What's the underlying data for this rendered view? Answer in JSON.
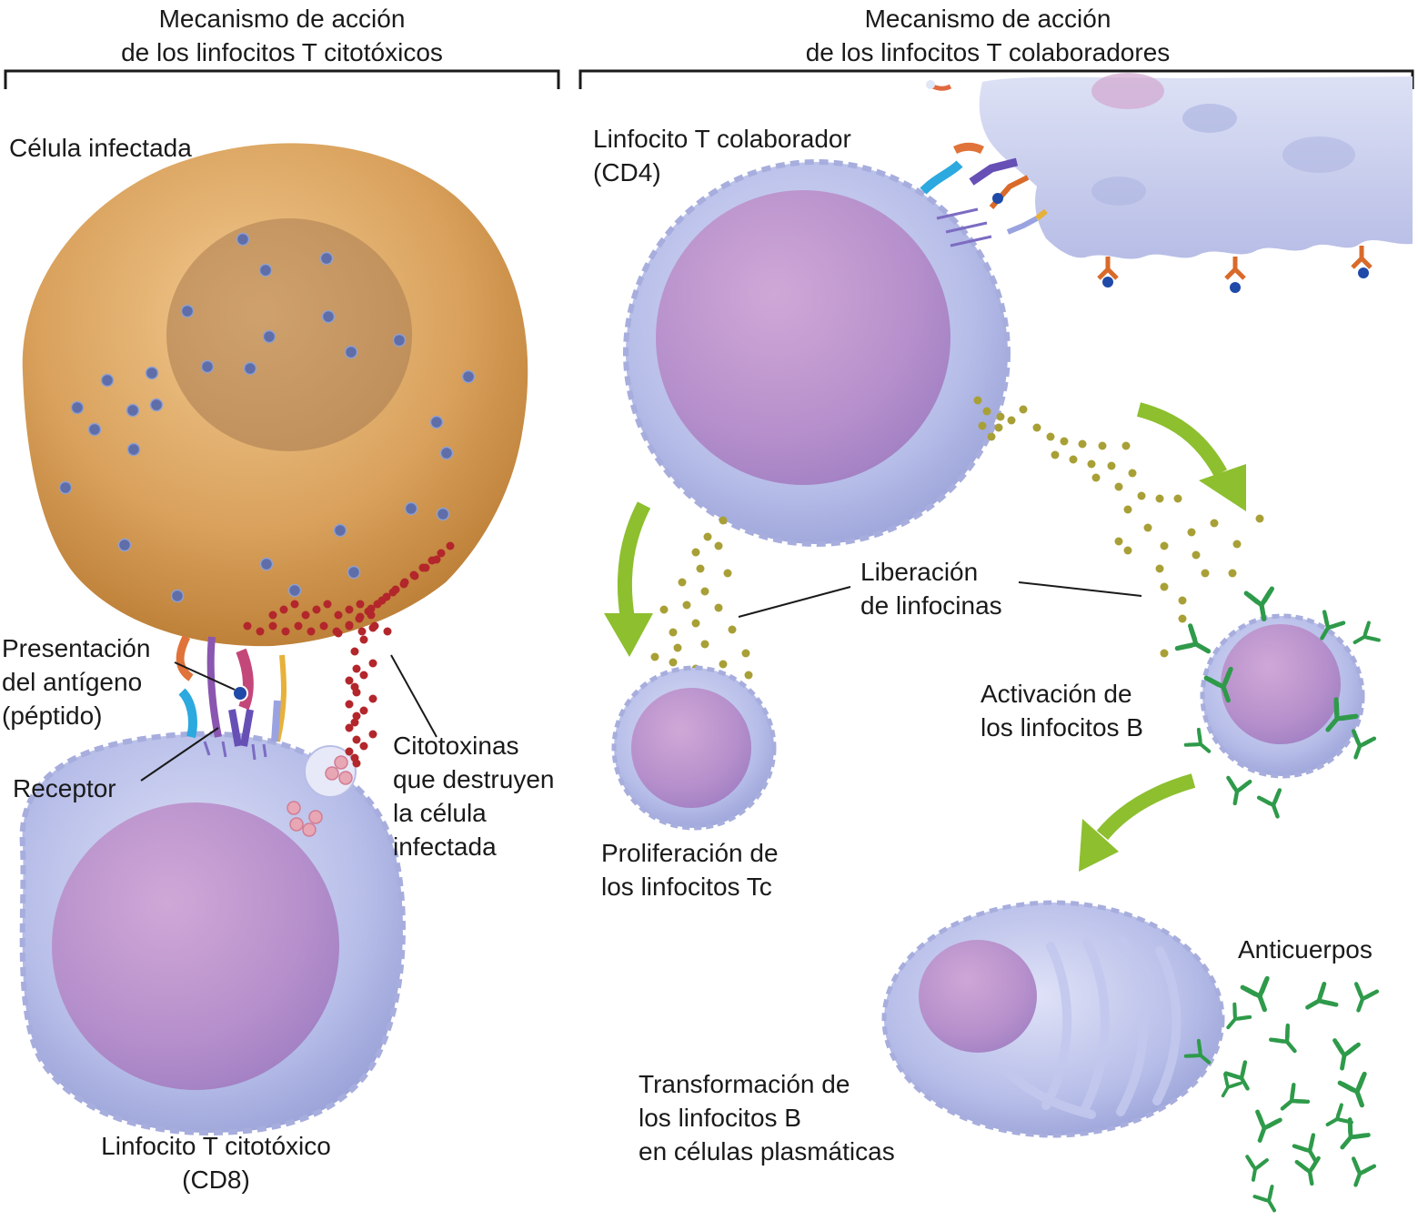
{
  "headers": {
    "left_line1": "Mecanismo de acción",
    "left_line2": "de los linfocitos T citotóxicos",
    "right_line1": "Mecanismo de acción",
    "right_line2": "de los linfocitos T colaboradores"
  },
  "labels": {
    "infected_cell": "Célula infectada",
    "antigen_line1": "Presentación",
    "antigen_line2": "del antígeno",
    "antigen_line3": "(péptido)",
    "receptor": "Receptor",
    "cytotoxins_line1": "Citotoxinas",
    "cytotoxins_line2": "que destruyen",
    "cytotoxins_line3": "la célula",
    "cytotoxins_line4": "infectada",
    "cd8_line1": "Linfocito T citotóxico",
    "cd8_line2": "(CD8)",
    "helper_line1": "Linfocito T colaborador",
    "helper_line2": "(CD4)",
    "lymphokines_line1": "Liberación",
    "lymphokines_line2": "de linfocinas",
    "proliferation_line1": "Proliferación de",
    "proliferation_line2": "los linfocitos Tc",
    "b_activation_line1": "Activación de",
    "b_activation_line2": "los linfocitos B",
    "antibodies": "Anticuerpos",
    "transformation_line1": "Transformación de",
    "transformation_line2": "los linfocitos B",
    "transformation_line3": "en células plasmáticas"
  },
  "colors": {
    "infected_cell": "#d9a15c",
    "lymphocyte": "#b6bde8",
    "nucleus": "#b98ac9",
    "cytotoxin": "#b3262b",
    "lymphokine": "#a8a036",
    "arrow": "#8dbf2e",
    "antibody": "#2e9a4a"
  }
}
